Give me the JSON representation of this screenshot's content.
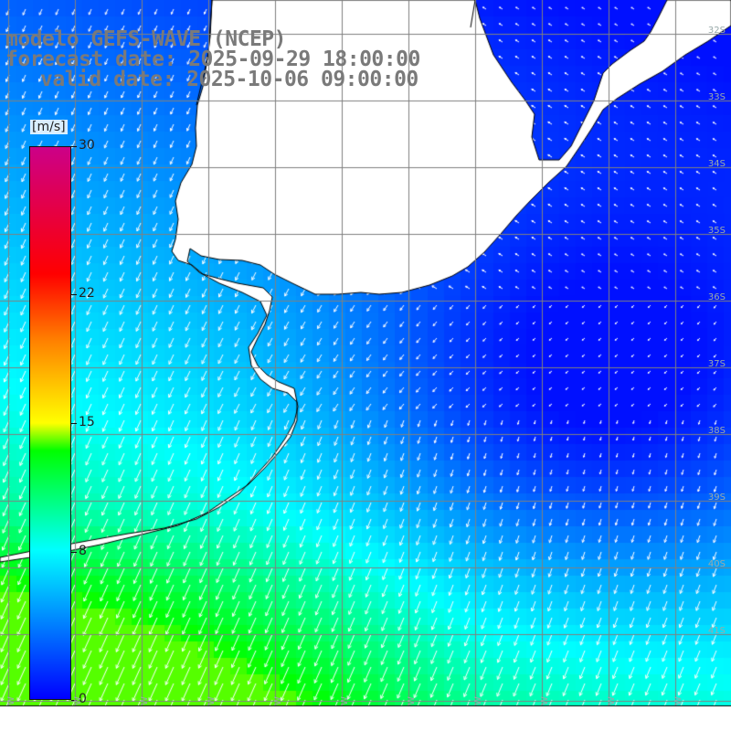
{
  "header": {
    "model_line": "modelo GEFS-WAVE (NCEP)",
    "forecast_line": "forecast date: 2025-09-29 18:00:00",
    "valid_line": "valid date: 2025-10-06 09:00:00"
  },
  "colorbar": {
    "unit": "[m/s]",
    "min": 0,
    "max": 30,
    "ticks": [
      "30",
      "22",
      "15",
      "8",
      "0"
    ],
    "tick_values": [
      30,
      22,
      15,
      8,
      0
    ],
    "colors": [
      "#0000ff",
      "#00ffff",
      "#00ff00",
      "#ffff00",
      "#ff8000",
      "#ff0000",
      "#cc0088"
    ]
  },
  "map": {
    "land_color": "#ffffff",
    "coastline_color": "#000000",
    "grid_color": "#808080",
    "arrow_color": "#ffffff",
    "lat_labels": [
      "32S",
      "33S",
      "34S",
      "35S",
      "36S",
      "37S",
      "38S",
      "39S",
      "40S",
      "41S"
    ],
    "lon_labels": [
      "W",
      "W",
      "W",
      "W",
      "W",
      "W",
      "W",
      "W",
      "W",
      "W",
      "W",
      "W"
    ]
  }
}
